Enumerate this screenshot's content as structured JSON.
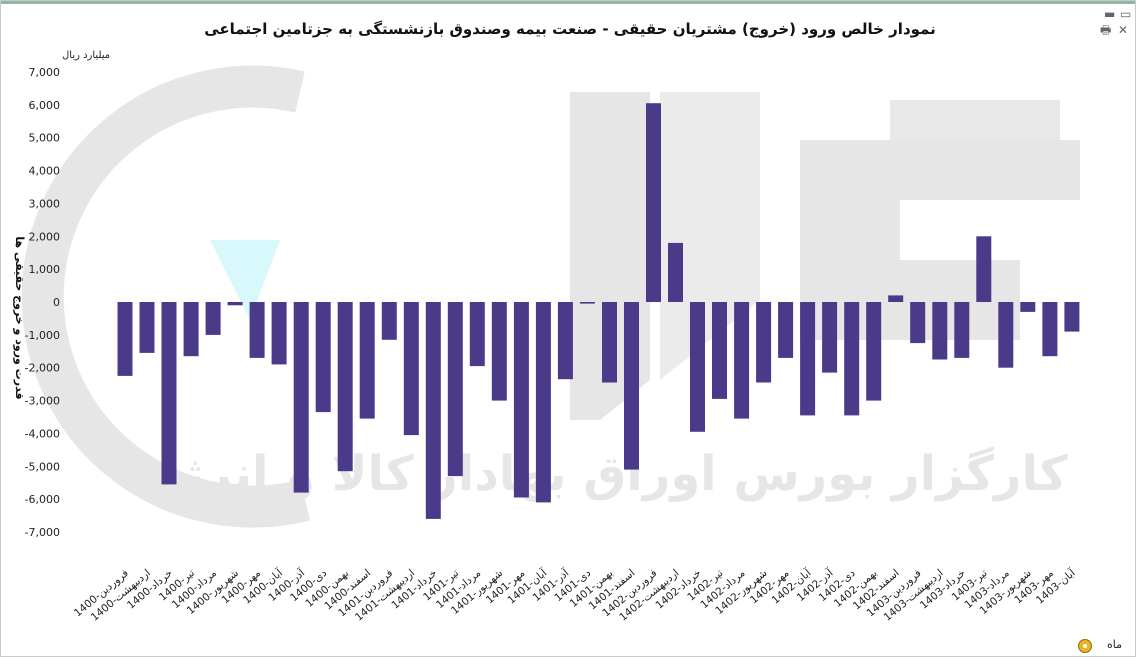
{
  "window": {
    "title": "نمودار خالص ورود (خروج) مشتریان حقیقی - صنعت بیمه وصندوق بازنشستگی به جزتامین اجتماعی",
    "footer_label": "ماه"
  },
  "colors": {
    "bar": "#4b3a8a",
    "watermark": "#e6e6e6",
    "watermark_accent": "#d8f8fb"
  },
  "watermark": {
    "text": "کارگزار بورس اوراق بهادار کالا و انرژی"
  },
  "chart_data": {
    "type": "bar",
    "unit_label": "میلیارد ریال",
    "ylabel": "قدرت ورود و خروج حقیقی ها",
    "ylim": [
      -7000,
      7000
    ],
    "yticks": [
      7000,
      6000,
      5000,
      4000,
      3000,
      2000,
      1000,
      0,
      -1000,
      -2000,
      -3000,
      -4000,
      -5000,
      -6000,
      -7000
    ],
    "ytick_labels": [
      "7,000",
      "6,000",
      "5,000",
      "4,000",
      "3,000",
      "2,000",
      "1,000",
      "0",
      "-1,000",
      "-2,000",
      "-3,000",
      "-4,000",
      "-5,000",
      "-6,000",
      "-7,000"
    ],
    "categories": [
      "1400-فروردین",
      "1400-اردیبهشت",
      "1400-خرداد",
      "1400-تیر",
      "1400-مرداد",
      "1400-شهریور",
      "1400-مهر",
      "1400-آبان",
      "1400-آذر",
      "1400-دی",
      "1400-بهمن",
      "1400-اسفند",
      "1401-فروردین",
      "1401-اردیبهشت",
      "1401-خرداد",
      "1401-تیر",
      "1401-مرداد",
      "1401-شهریور",
      "1401-مهر",
      "1401-آبان",
      "1401-آذر",
      "1401-دی",
      "1401-بهمن",
      "1401-اسفند",
      "1402-فروردین",
      "1402-اردیبهشت",
      "1402-خرداد",
      "1402-تیر",
      "1402-مرداد",
      "1402-شهریور",
      "1402-مهر",
      "1402-آبان",
      "1402-آذر",
      "1402-دی",
      "1402-بهمن",
      "1402-اسفند",
      "1403-فروردین",
      "1403-اردیبهشت",
      "1403-خرداد",
      "1403-تیر",
      "1403-مرداد",
      "1403-شهریور",
      "1403-مهر",
      "1403-آبان"
    ],
    "values": [
      -2250,
      -1550,
      -5550,
      -1650,
      -1000,
      -100,
      -1700,
      -1900,
      -5800,
      -3350,
      -5150,
      -3550,
      -1150,
      -4050,
      -6600,
      -5300,
      -1950,
      -3000,
      -5950,
      -6100,
      -2350,
      -50,
      -2450,
      -5100,
      6050,
      1800,
      -3950,
      -2950,
      -3550,
      -2450,
      -1700,
      -3450,
      -2150,
      -3450,
      -3000,
      200,
      -1250,
      -1750,
      -1700,
      2000,
      -2000,
      -300,
      -1650,
      -900
    ],
    "legend": "none",
    "grid": false
  }
}
